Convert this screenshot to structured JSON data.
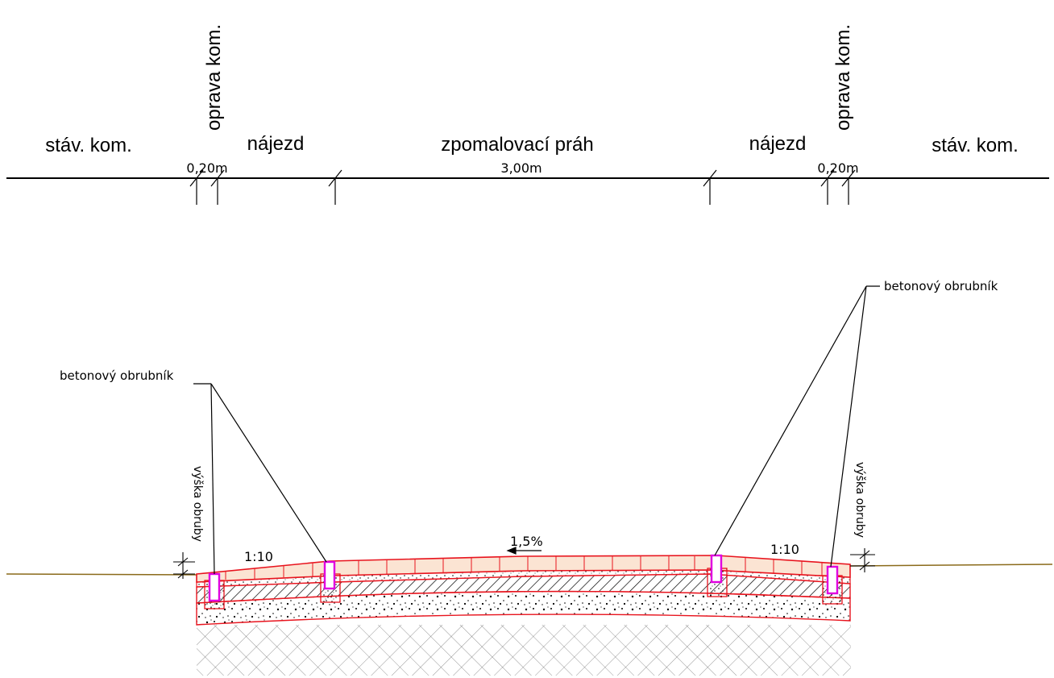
{
  "plan": {
    "segments": {
      "left_existing": "stáv. kom.",
      "left_repair": "oprava kom.",
      "left_ramp": "nájezd",
      "hump": "zpomalovací práh",
      "right_ramp": "nájezd",
      "right_repair": "oprava kom.",
      "right_existing": "stáv. kom."
    },
    "dimensions": {
      "left_repair_width": "0,20m",
      "hump_length": "3,00m",
      "right_repair_width": "0,20m"
    }
  },
  "section": {
    "left_curb_label": "betonový obrubník",
    "right_curb_label": "betonový obrubník",
    "left_curb_height_label": "výška obruby",
    "right_curb_height_label": "výška obruby",
    "left_ramp_slope": "1:10",
    "right_ramp_slope": "1:10",
    "crossfall": "1,5%"
  },
  "colors": {
    "line": "#000000",
    "layer_outline": "#e8141e",
    "surface_fill": "#fbe4d3",
    "curb": "#e000e0",
    "terrain": "#8a6a1a"
  }
}
